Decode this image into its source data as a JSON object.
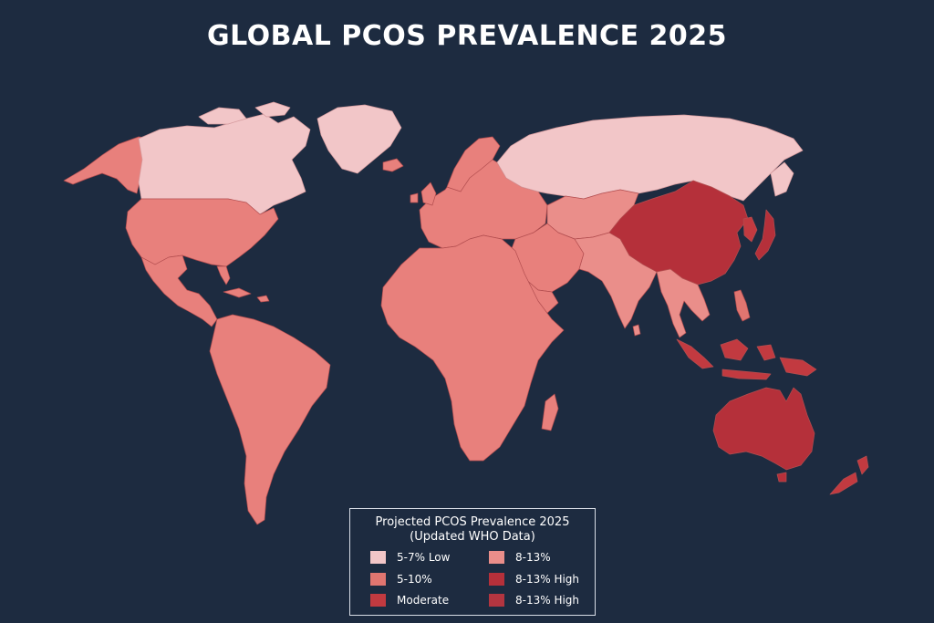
{
  "title": "GLOBAL PCOS PREVALENCE 2025",
  "colors": {
    "background": "#1d2b40",
    "low": "#f2c6c8",
    "mid": "#e8807c",
    "moderate": "#c23a40",
    "high": "#b5303a",
    "border": "#b24d4f"
  },
  "legend": {
    "title_line1": "Projected PCOS Prevalence 2025",
    "title_line2": "(Updated WHO Data)",
    "items": [
      {
        "label": "5-7% Low",
        "color": "#f2c6c8"
      },
      {
        "label": "8-13%",
        "color": "#ea8e8a"
      },
      {
        "label": "5-10%",
        "color": "#e07570"
      },
      {
        "label": "8-13% High",
        "color": "#b5303a"
      },
      {
        "label": "Moderate",
        "color": "#c23a40"
      },
      {
        "label": "8-13% High",
        "color": "#b33540"
      }
    ]
  },
  "regions": [
    {
      "name": "Canada",
      "category": "5-7% Low"
    },
    {
      "name": "Greenland",
      "category": "5-7% Low"
    },
    {
      "name": "Russia",
      "category": "5-7% Low"
    },
    {
      "name": "Alaska",
      "category": "5-10%"
    },
    {
      "name": "United States",
      "category": "5-10%"
    },
    {
      "name": "Mexico & Central America",
      "category": "5-10%"
    },
    {
      "name": "South America",
      "category": "5-10%"
    },
    {
      "name": "Europe",
      "category": "5-10%"
    },
    {
      "name": "Africa",
      "category": "5-10%"
    },
    {
      "name": "Middle East",
      "category": "5-10%"
    },
    {
      "name": "Central Asia",
      "category": "8-13%"
    },
    {
      "name": "India",
      "category": "8-13%"
    },
    {
      "name": "Southeast Asia",
      "category": "8-13%"
    },
    {
      "name": "China",
      "category": "8-13% High"
    },
    {
      "name": "Japan",
      "category": "8-13% High"
    },
    {
      "name": "Indonesia",
      "category": "Moderate"
    },
    {
      "name": "Australia",
      "category": "8-13% High"
    },
    {
      "name": "New Zealand",
      "category": "Moderate"
    },
    {
      "name": "Madagascar",
      "category": "5-10%"
    }
  ]
}
